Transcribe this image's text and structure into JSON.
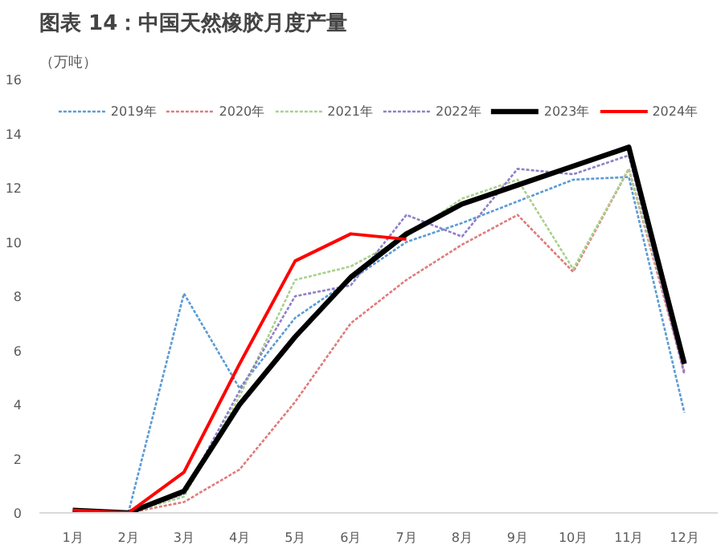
{
  "chart_data": {
    "type": "line",
    "title": "图表 14：中国天然橡胶月度产量",
    "ylabel": "（万吨）",
    "categories": [
      "1月",
      "2月",
      "3月",
      "4月",
      "5月",
      "6月",
      "7月",
      "8月",
      "9月",
      "10月",
      "11月",
      "12月"
    ],
    "series": [
      {
        "name": "2019年",
        "color": "#5b9bd5",
        "line_style": "dotted",
        "values": [
          null,
          0,
          8.1,
          4.6,
          7.2,
          8.6,
          10.0,
          10.7,
          11.5,
          12.3,
          12.4,
          3.7
        ]
      },
      {
        "name": "2020年",
        "color": "#e07b7b",
        "line_style": "dotted",
        "values": [
          0,
          0,
          0.4,
          1.6,
          4.1,
          7.0,
          8.6,
          9.9,
          11.0,
          8.9,
          12.7,
          5.2
        ]
      },
      {
        "name": "2021年",
        "color": "#a9d18e",
        "line_style": "dotted",
        "values": [
          0.05,
          0,
          0.6,
          4.3,
          8.6,
          9.1,
          10.2,
          11.6,
          12.3,
          9.0,
          12.7,
          5.5
        ]
      },
      {
        "name": "2022年",
        "color": "#8f7fc7",
        "line_style": "dotted",
        "values": [
          null,
          0,
          0.7,
          4.5,
          8.0,
          8.4,
          11.0,
          10.2,
          12.7,
          12.5,
          13.2,
          5.1
        ]
      },
      {
        "name": "2023年",
        "color": "#000000",
        "line_style": "solid",
        "values": [
          0.1,
          0,
          0.8,
          4.0,
          6.5,
          8.7,
          10.3,
          11.4,
          12.1,
          12.8,
          13.5,
          5.5
        ]
      },
      {
        "name": "2024年",
        "color": "#ff0000",
        "line_style": "solid",
        "values": [
          0.1,
          0,
          1.5,
          5.5,
          9.3,
          10.3,
          10.1,
          null,
          null,
          null,
          null,
          null
        ]
      }
    ],
    "ylim": [
      0,
      16
    ],
    "yticks": [
      0,
      2,
      4,
      6,
      8,
      10,
      12,
      14,
      16
    ],
    "grid": false,
    "legend": "top",
    "marker": "none"
  }
}
